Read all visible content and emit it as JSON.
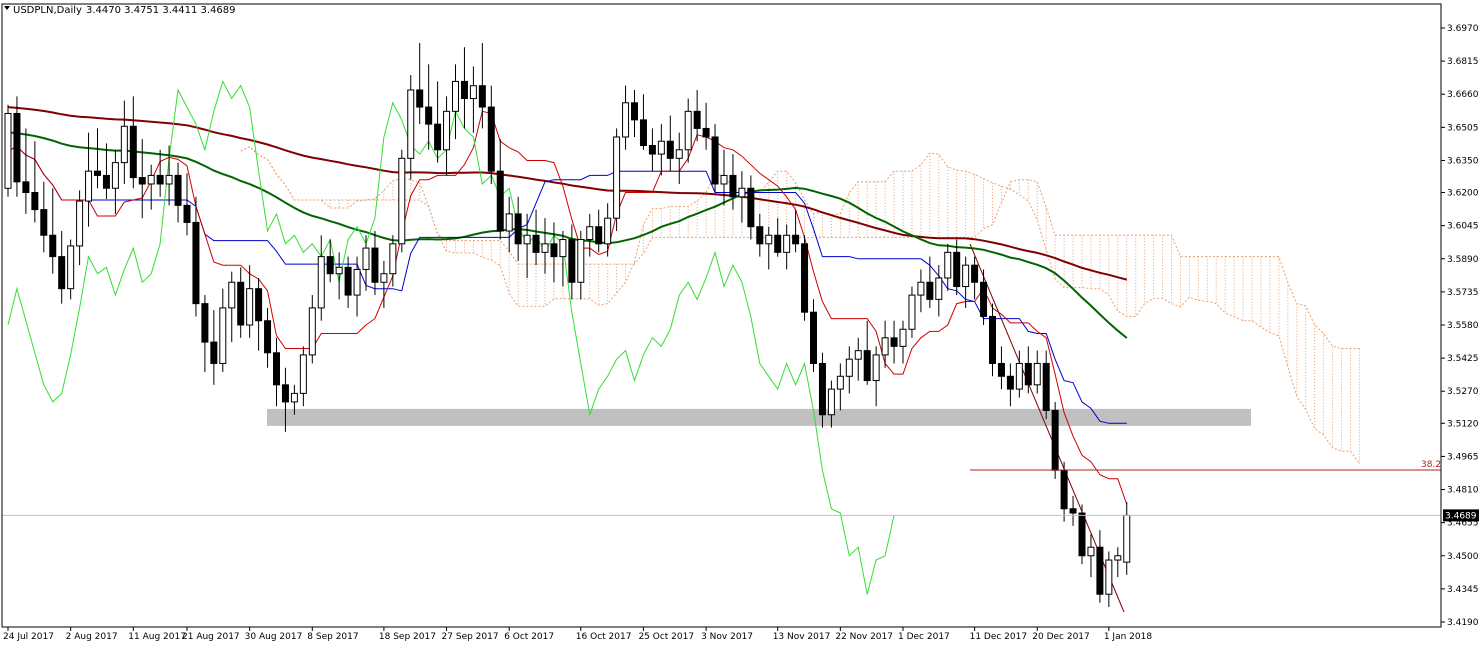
{
  "header": {
    "symbol": "USDPLN,Daily",
    "ohlc": "3.4470 3.4751 3.4411 3.4689"
  },
  "colors": {
    "background": "#ffffff",
    "bull_candle": "#ffffff",
    "bear_candle": "#000000",
    "kijun": "#0000cc",
    "tenkan": "#cc0000",
    "chikou": "#33dd33",
    "ma_green": "#006400",
    "ma_maroon": "#800000",
    "cloud": "#e8a070",
    "support_zone": "#c0c0c0",
    "price_line": "#c0c0c0",
    "fib_line": "#b22222"
  },
  "chart_data": {
    "type": "candlestick",
    "title": "USDPLN,Daily",
    "y_axis": {
      "min": 3.419,
      "max": 3.7025,
      "ticks": [
        "3.6970",
        "3.6815",
        "3.6660",
        "3.6505",
        "3.6350",
        "3.6200",
        "3.6045",
        "3.5890",
        "3.5735",
        "3.5580",
        "3.5425",
        "3.5270",
        "3.5120",
        "3.4965",
        "3.4810",
        "3.4655",
        "3.4500",
        "3.4345",
        "3.4190"
      ]
    },
    "x_axis": {
      "ticks": [
        {
          "label": "24 Jul 2017",
          "i": 0
        },
        {
          "label": "2 Aug 2017",
          "i": 7
        },
        {
          "label": "11 Aug 2017",
          "i": 14
        },
        {
          "label": "21 Aug 2017",
          "i": 20
        },
        {
          "label": "30 Aug 2017",
          "i": 27
        },
        {
          "label": "8 Sep 2017",
          "i": 34
        },
        {
          "label": "18 Sep 2017",
          "i": 42
        },
        {
          "label": "27 Sep 2017",
          "i": 49
        },
        {
          "label": "6 Oct 2017",
          "i": 56
        },
        {
          "label": "16 Oct 2017",
          "i": 64
        },
        {
          "label": "25 Oct 2017",
          "i": 71
        },
        {
          "label": "3 Nov 2017",
          "i": 78
        },
        {
          "label": "13 Nov 2017",
          "i": 86
        },
        {
          "label": "22 Nov 2017",
          "i": 93
        },
        {
          "label": "1 Dec 2017",
          "i": 100
        },
        {
          "label": "11 Dec 2017",
          "i": 108
        },
        {
          "label": "20 Dec 2017",
          "i": 115
        },
        {
          "label": "1 Jan 2018",
          "i": 123
        }
      ]
    },
    "ohlc": [
      [
        3.622,
        3.661,
        3.618,
        3.657
      ],
      [
        3.657,
        3.665,
        3.618,
        3.625
      ],
      [
        3.625,
        3.65,
        3.61,
        3.62
      ],
      [
        3.62,
        3.644,
        3.606,
        3.612
      ],
      [
        3.612,
        3.625,
        3.592,
        3.6
      ],
      [
        3.6,
        3.622,
        3.582,
        3.59
      ],
      [
        3.59,
        3.602,
        3.568,
        3.575
      ],
      [
        3.575,
        3.598,
        3.57,
        3.595
      ],
      [
        3.595,
        3.621,
        3.586,
        3.616
      ],
      [
        3.616,
        3.648,
        3.604,
        3.63
      ],
      [
        3.63,
        3.65,
        3.622,
        3.628
      ],
      [
        3.628,
        3.643,
        3.617,
        3.622
      ],
      [
        3.622,
        3.64,
        3.61,
        3.634
      ],
      [
        3.634,
        3.663,
        3.624,
        3.651
      ],
      [
        3.651,
        3.665,
        3.622,
        3.627
      ],
      [
        3.627,
        3.645,
        3.608,
        3.624
      ],
      [
        3.624,
        3.633,
        3.612,
        3.628
      ],
      [
        3.628,
        3.64,
        3.618,
        3.624
      ],
      [
        3.624,
        3.642,
        3.614,
        3.628
      ],
      [
        3.628,
        3.634,
        3.606,
        3.614
      ],
      [
        3.614,
        3.629,
        3.6,
        3.606
      ],
      [
        3.606,
        3.618,
        3.562,
        3.568
      ],
      [
        3.568,
        3.572,
        3.536,
        3.55
      ],
      [
        3.55,
        3.565,
        3.53,
        3.54
      ],
      [
        3.54,
        3.575,
        3.536,
        3.566
      ],
      [
        3.566,
        3.583,
        3.55,
        3.578
      ],
      [
        3.578,
        3.585,
        3.552,
        3.558
      ],
      [
        3.558,
        3.586,
        3.552,
        3.575
      ],
      [
        3.575,
        3.58,
        3.546,
        3.56
      ],
      [
        3.56,
        3.566,
        3.538,
        3.545
      ],
      [
        3.545,
        3.552,
        3.52,
        3.53
      ],
      [
        3.53,
        3.538,
        3.508,
        3.522
      ],
      [
        3.522,
        3.53,
        3.516,
        3.526
      ],
      [
        3.526,
        3.548,
        3.52,
        3.544
      ],
      [
        3.544,
        3.572,
        3.54,
        3.566
      ],
      [
        3.566,
        3.6,
        3.56,
        3.59
      ],
      [
        3.59,
        3.598,
        3.578,
        3.582
      ],
      [
        3.582,
        3.592,
        3.57,
        3.585
      ],
      [
        3.585,
        3.59,
        3.566,
        3.572
      ],
      [
        3.572,
        3.59,
        3.562,
        3.584
      ],
      [
        3.584,
        3.6,
        3.574,
        3.594
      ],
      [
        3.594,
        3.602,
        3.572,
        3.578
      ],
      [
        3.578,
        3.588,
        3.566,
        3.582
      ],
      [
        3.582,
        3.6,
        3.576,
        3.596
      ],
      [
        3.596,
        3.64,
        3.592,
        3.636
      ],
      [
        3.636,
        3.675,
        3.626,
        3.668
      ],
      [
        3.668,
        3.69,
        3.652,
        3.66
      ],
      [
        3.66,
        3.68,
        3.64,
        3.652
      ],
      [
        3.652,
        3.672,
        3.634,
        3.64
      ],
      [
        3.64,
        3.665,
        3.628,
        3.658
      ],
      [
        3.658,
        3.68,
        3.645,
        3.672
      ],
      [
        3.672,
        3.688,
        3.65,
        3.664
      ],
      [
        3.664,
        3.679,
        3.648,
        3.67
      ],
      [
        3.67,
        3.69,
        3.65,
        3.66
      ],
      [
        3.66,
        3.67,
        3.624,
        3.63
      ],
      [
        3.63,
        3.645,
        3.598,
        3.602
      ],
      [
        3.602,
        3.618,
        3.592,
        3.61
      ],
      [
        3.61,
        3.618,
        3.588,
        3.596
      ],
      [
        3.596,
        3.61,
        3.58,
        3.6
      ],
      [
        3.6,
        3.612,
        3.586,
        3.592
      ],
      [
        3.592,
        3.608,
        3.582,
        3.596
      ],
      [
        3.596,
        3.606,
        3.578,
        3.59
      ],
      [
        3.59,
        3.602,
        3.576,
        3.598
      ],
      [
        3.598,
        3.605,
        3.57,
        3.578
      ],
      [
        3.578,
        3.602,
        3.57,
        3.598
      ],
      [
        3.598,
        3.61,
        3.59,
        3.604
      ],
      [
        3.604,
        3.612,
        3.592,
        3.596
      ],
      [
        3.596,
        3.615,
        3.59,
        3.608
      ],
      [
        3.608,
        3.65,
        3.602,
        3.646
      ],
      [
        3.646,
        3.67,
        3.64,
        3.662
      ],
      [
        3.662,
        3.668,
        3.646,
        3.654
      ],
      [
        3.654,
        3.666,
        3.64,
        3.642
      ],
      [
        3.642,
        3.65,
        3.63,
        3.638
      ],
      [
        3.638,
        3.652,
        3.628,
        3.644
      ],
      [
        3.644,
        3.656,
        3.63,
        3.636
      ],
      [
        3.636,
        3.648,
        3.624,
        3.64
      ],
      [
        3.64,
        3.664,
        3.634,
        3.658
      ],
      [
        3.658,
        3.668,
        3.644,
        3.65
      ],
      [
        3.65,
        3.662,
        3.64,
        3.646
      ],
      [
        3.646,
        3.652,
        3.62,
        3.624
      ],
      [
        3.624,
        3.64,
        3.614,
        3.628
      ],
      [
        3.628,
        3.638,
        3.612,
        3.618
      ],
      [
        3.618,
        3.63,
        3.606,
        3.622
      ],
      [
        3.622,
        3.628,
        3.598,
        3.604
      ],
      [
        3.604,
        3.61,
        3.59,
        3.596
      ],
      [
        3.596,
        3.604,
        3.584,
        3.6
      ],
      [
        3.6,
        3.608,
        3.59,
        3.592
      ],
      [
        3.592,
        3.605,
        3.584,
        3.6
      ],
      [
        3.6,
        3.612,
        3.592,
        3.596
      ],
      [
        3.596,
        3.6,
        3.56,
        3.564
      ],
      [
        3.564,
        3.57,
        3.536,
        3.54
      ],
      [
        3.54,
        3.545,
        3.51,
        3.516
      ],
      [
        3.516,
        3.532,
        3.51,
        3.528
      ],
      [
        3.528,
        3.54,
        3.518,
        3.534
      ],
      [
        3.534,
        3.548,
        3.526,
        3.542
      ],
      [
        3.542,
        3.552,
        3.532,
        3.546
      ],
      [
        3.546,
        3.56,
        3.53,
        3.532
      ],
      [
        3.532,
        3.548,
        3.52,
        3.544
      ],
      [
        3.544,
        3.56,
        3.538,
        3.552
      ],
      [
        3.552,
        3.56,
        3.54,
        3.548
      ],
      [
        3.548,
        3.56,
        3.54,
        3.556
      ],
      [
        3.556,
        3.576,
        3.552,
        3.572
      ],
      [
        3.572,
        3.584,
        3.564,
        3.578
      ],
      [
        3.578,
        3.59,
        3.566,
        3.57
      ],
      [
        3.57,
        3.586,
        3.562,
        3.58
      ],
      [
        3.58,
        3.596,
        3.574,
        3.592
      ],
      [
        3.592,
        3.598,
        3.572,
        3.576
      ],
      [
        3.576,
        3.59,
        3.566,
        3.586
      ],
      [
        3.586,
        3.59,
        3.57,
        3.578
      ],
      [
        3.578,
        3.584,
        3.558,
        3.562
      ],
      [
        3.562,
        3.568,
        3.534,
        3.54
      ],
      [
        3.54,
        3.548,
        3.528,
        3.534
      ],
      [
        3.534,
        3.54,
        3.52,
        3.528
      ],
      [
        3.528,
        3.546,
        3.524,
        3.54
      ],
      [
        3.54,
        3.548,
        3.526,
        3.53
      ],
      [
        3.53,
        3.546,
        3.526,
        3.54
      ],
      [
        3.54,
        3.546,
        3.514,
        3.518
      ],
      [
        3.518,
        3.522,
        3.486,
        3.49
      ],
      [
        3.49,
        3.494,
        3.466,
        3.472
      ],
      [
        3.472,
        3.478,
        3.464,
        3.47
      ],
      [
        3.47,
        3.474,
        3.446,
        3.45
      ],
      [
        3.45,
        3.46,
        3.44,
        3.454
      ],
      [
        3.454,
        3.462,
        3.428,
        3.432
      ],
      [
        3.432,
        3.452,
        3.426,
        3.448
      ],
      [
        3.448,
        3.454,
        3.44,
        3.45
      ],
      [
        3.447,
        3.4751,
        3.4411,
        3.4689
      ]
    ],
    "levels": [
      {
        "label": "3.4689",
        "type": "current_price"
      },
      {
        "label": "38.2",
        "type": "fibonacci"
      }
    ],
    "support_zone": {
      "from": 3.51,
      "to": 3.515
    },
    "indicators": [
      "tenkan-sen",
      "kijun-sen",
      "chikou span",
      "senkou span A/B cloud",
      "moving average (green)",
      "moving average (maroon)"
    ]
  }
}
